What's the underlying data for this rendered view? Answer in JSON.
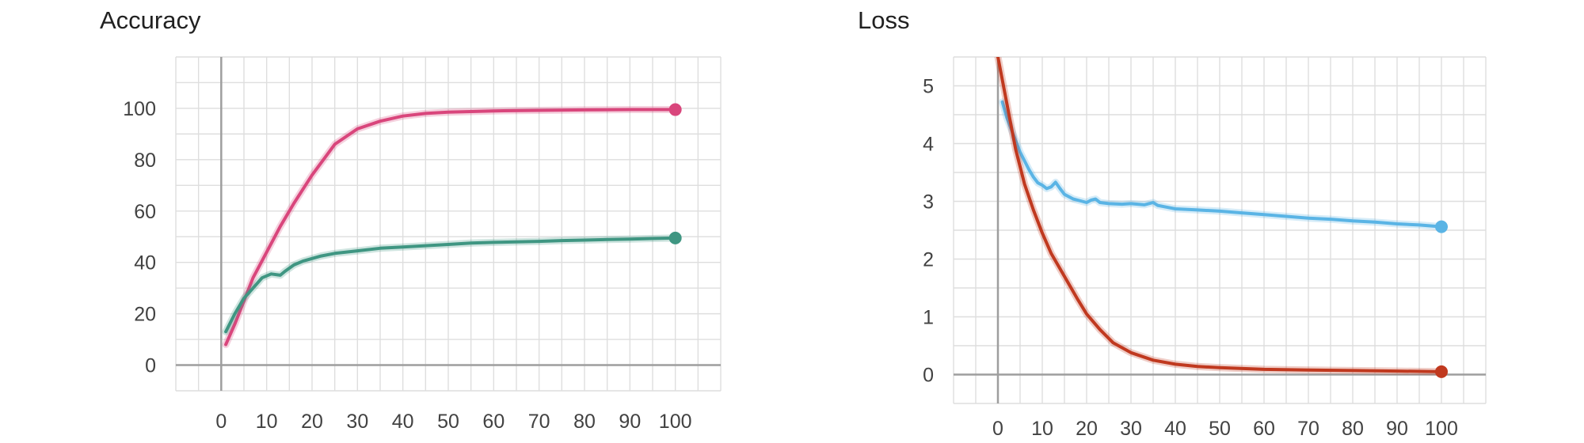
{
  "chart_data": [
    {
      "type": "line",
      "title": "Accuracy",
      "xlabel": "",
      "ylabel": "",
      "xlim": [
        -10,
        110
      ],
      "ylim": [
        -10,
        120
      ],
      "xticks": [
        0,
        10,
        20,
        30,
        40,
        50,
        60,
        70,
        80,
        90,
        100
      ],
      "yticks": [
        0,
        20,
        40,
        60,
        80,
        100
      ],
      "grid": true,
      "series": [
        {
          "color": "#d9467c",
          "x": [
            1,
            3,
            5,
            7,
            10,
            13,
            16,
            20,
            25,
            30,
            35,
            40,
            45,
            50,
            60,
            70,
            80,
            90,
            100
          ],
          "y": [
            8,
            16,
            25,
            34,
            44,
            54,
            63,
            74,
            86,
            92,
            95,
            97,
            98,
            98.5,
            99,
            99.2,
            99.4,
            99.5,
            99.5
          ]
        },
        {
          "color": "#3f9682",
          "x": [
            1,
            3,
            5,
            7,
            9,
            11,
            13,
            14,
            16,
            18,
            20,
            22,
            25,
            30,
            35,
            40,
            45,
            50,
            55,
            60,
            65,
            70,
            75,
            80,
            85,
            90,
            95,
            100
          ],
          "y": [
            13,
            20,
            26,
            30,
            34,
            35.5,
            35,
            36.5,
            39,
            40.5,
            41.5,
            42.5,
            43.5,
            44.5,
            45.5,
            46,
            46.5,
            47,
            47.5,
            47.8,
            48,
            48.2,
            48.5,
            48.7,
            48.9,
            49.1,
            49.3,
            49.5
          ]
        }
      ]
    },
    {
      "type": "line",
      "title": "Loss",
      "xlabel": "",
      "ylabel": "",
      "xlim": [
        -10,
        110
      ],
      "ylim": [
        -0.5,
        5.5
      ],
      "xticks": [
        0,
        10,
        20,
        30,
        40,
        50,
        60,
        70,
        80,
        90,
        100
      ],
      "yticks": [
        0,
        1,
        2,
        3,
        4,
        5
      ],
      "grid": true,
      "series": [
        {
          "color": "#5ab4e5",
          "x": [
            1,
            2,
            3,
            4,
            5,
            6,
            7,
            8,
            9,
            10,
            11,
            12,
            13,
            14,
            15,
            17,
            19,
            20,
            21,
            22,
            23,
            25,
            28,
            30,
            33,
            35,
            36,
            38,
            40,
            45,
            50,
            55,
            60,
            65,
            70,
            75,
            80,
            85,
            90,
            95,
            100
          ],
          "y": [
            4.72,
            4.45,
            4.25,
            4.05,
            3.85,
            3.7,
            3.55,
            3.42,
            3.32,
            3.28,
            3.22,
            3.25,
            3.33,
            3.22,
            3.12,
            3.04,
            3.0,
            2.98,
            3.02,
            3.04,
            2.98,
            2.96,
            2.95,
            2.96,
            2.94,
            2.98,
            2.93,
            2.9,
            2.87,
            2.85,
            2.83,
            2.8,
            2.77,
            2.74,
            2.71,
            2.69,
            2.66,
            2.64,
            2.61,
            2.59,
            2.56
          ]
        },
        {
          "color": "#c0391f",
          "x": [
            0,
            2,
            4,
            6,
            8,
            10,
            12,
            15,
            18,
            20,
            23,
            26,
            30,
            35,
            40,
            45,
            50,
            60,
            70,
            80,
            90,
            100
          ],
          "y": [
            5.5,
            4.7,
            3.9,
            3.3,
            2.85,
            2.45,
            2.1,
            1.7,
            1.3,
            1.05,
            0.78,
            0.55,
            0.38,
            0.25,
            0.18,
            0.14,
            0.12,
            0.09,
            0.08,
            0.07,
            0.06,
            0.05
          ]
        }
      ]
    }
  ]
}
